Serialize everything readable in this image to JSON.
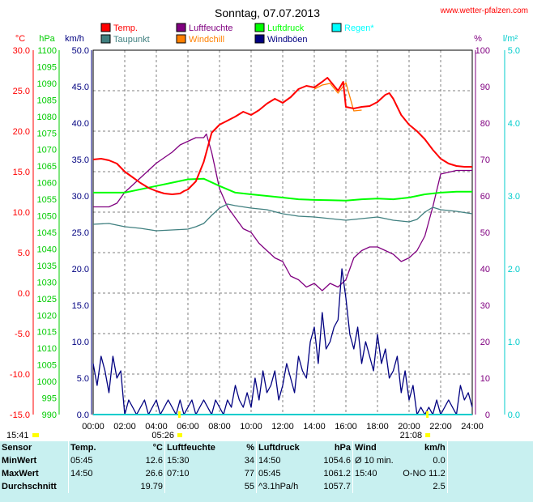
{
  "site": "www.wetter-pfalzen.com",
  "chart_data": {
    "type": "line",
    "title": "Sonntag, 07.07.2013",
    "x_ticks": [
      "00:00",
      "02:00",
      "04:00",
      "06:00",
      "08:00",
      "10:00",
      "12:00",
      "14:00",
      "16:00",
      "18:00",
      "20:00",
      "22:00",
      "24:00"
    ],
    "sunrise": "05:26",
    "sunset": "21:08",
    "daylight_start": "15:41",
    "grid": true,
    "axes": {
      "temp": {
        "unit": "°C",
        "range": [
          -15,
          30
        ],
        "ticks": [
          "30.0",
          "25.0",
          "20.0",
          "15.0",
          "10.0",
          "5.0",
          "0.0",
          "-5.0",
          "-10.0",
          "-15.0"
        ],
        "color": "#ff0000"
      },
      "pressure": {
        "unit": "hPa",
        "range": [
          990,
          1100
        ],
        "ticks": [
          "1100",
          "1095",
          "1090",
          "1085",
          "1080",
          "1075",
          "1070",
          "1065",
          "1060",
          "1055",
          "1050",
          "1045",
          "1040",
          "1035",
          "1030",
          "1025",
          "1020",
          "1015",
          "1010",
          "1005",
          "1000",
          "995",
          "990"
        ],
        "color": "#00cc00"
      },
      "wind": {
        "unit": "km/h",
        "range": [
          0,
          50
        ],
        "ticks": [
          "50.0",
          "45.0",
          "40.0",
          "35.0",
          "30.0",
          "25.0",
          "20.0",
          "15.0",
          "10.0",
          "5.0",
          "0.0"
        ],
        "color": "#000080"
      },
      "humidity": {
        "unit": "%",
        "range": [
          0,
          100
        ],
        "ticks": [
          "100",
          "90",
          "80",
          "70",
          "60",
          "50",
          "40",
          "30",
          "20",
          "10",
          "0"
        ],
        "color": "#800080"
      },
      "rain": {
        "unit": "l/m²",
        "range": [
          0,
          5
        ],
        "ticks": [
          "5.0",
          "4.0",
          "3.0",
          "2.0",
          "1.0",
          "0.0"
        ],
        "color": "#00cccc"
      }
    },
    "legend": [
      {
        "label": "Temp.",
        "color": "#ff0000"
      },
      {
        "label": "Luftfeuchte",
        "color": "#800080"
      },
      {
        "label": "Luftdruck",
        "color": "#00ff00"
      },
      {
        "label": "Regen*",
        "color": "#00ffff"
      },
      {
        "label": "Taupunkt",
        "color": "#408080"
      },
      {
        "label": "Windchill",
        "color": "#ff8000"
      },
      {
        "label": "Windböen",
        "color": "#000080"
      }
    ],
    "series": [
      {
        "name": "Temp.",
        "axis": "temp",
        "color": "#ff0000",
        "x": [
          0,
          0.5,
          1,
          1.5,
          2,
          2.5,
          3,
          3.5,
          4,
          4.5,
          5,
          5.5,
          5.75,
          6,
          6.5,
          7,
          7.5,
          8,
          8.5,
          9,
          9.5,
          10,
          10.5,
          11,
          11.5,
          12,
          12.5,
          13,
          13.5,
          14,
          14.5,
          14.83,
          15,
          15.5,
          15.83,
          16,
          16.5,
          17,
          17.5,
          18,
          18.5,
          18.75,
          19,
          19.5,
          20,
          20.5,
          21,
          21.5,
          22,
          22.5,
          23,
          23.5,
          24
        ],
        "y": [
          16.5,
          16.6,
          16.4,
          16.0,
          15.0,
          14.3,
          13.6,
          13.0,
          12.6,
          12.3,
          12.2,
          12.3,
          12.6,
          12.8,
          13.8,
          16.2,
          19.8,
          20.8,
          21.3,
          21.8,
          22.4,
          22.0,
          22.6,
          23.4,
          24.0,
          23.5,
          24.2,
          25.2,
          25.6,
          25.4,
          26.1,
          26.6,
          26.2,
          25.0,
          26.1,
          23.0,
          22.8,
          23.0,
          23.1,
          23.6,
          24.5,
          24.7,
          24.0,
          22.0,
          20.8,
          20.0,
          19.0,
          17.7,
          16.6,
          16.0,
          15.7,
          15.6,
          15.6
        ]
      },
      {
        "name": "Windchill",
        "axis": "temp",
        "color": "#ff8000",
        "x": [
          14,
          14.5,
          15,
          15.5,
          16,
          16.5,
          17
        ],
        "y": [
          25.2,
          25.7,
          25.9,
          24.7,
          26.0,
          22.5,
          22.6
        ]
      },
      {
        "name": "Taupunkt",
        "axis": "temp",
        "color": "#408080",
        "x": [
          0,
          1,
          2,
          3,
          4,
          5,
          6,
          6.5,
          7,
          7.5,
          8,
          8.5,
          9,
          10,
          11,
          12,
          13,
          14,
          15,
          16,
          17,
          18,
          19,
          20,
          20.5,
          21,
          21.5,
          22,
          23,
          24
        ],
        "y": [
          8.5,
          8.6,
          8.2,
          8.0,
          7.7,
          7.8,
          7.9,
          8.2,
          8.6,
          9.6,
          10.5,
          11.0,
          10.8,
          10.5,
          10.3,
          9.8,
          9.5,
          9.4,
          9.2,
          9.0,
          9.2,
          9.4,
          9.0,
          8.8,
          9.1,
          10.0,
          10.6,
          10.3,
          10.1,
          9.8
        ]
      },
      {
        "name": "Luftdruck",
        "axis": "pressure",
        "color": "#00ff00",
        "x": [
          0,
          1,
          2,
          3,
          4,
          5,
          6,
          7,
          8,
          9,
          10,
          11,
          12,
          13,
          14,
          15,
          16,
          17,
          18,
          19,
          20,
          21,
          22,
          23,
          24
        ],
        "y": [
          1057.0,
          1057.0,
          1057.0,
          1058.0,
          1059.0,
          1060.0,
          1061.0,
          1061.2,
          1059.0,
          1057.0,
          1056.5,
          1056.0,
          1055.5,
          1055.0,
          1054.8,
          1054.7,
          1054.6,
          1055.0,
          1055.2,
          1055.0,
          1055.5,
          1056.5,
          1057.0,
          1057.3,
          1057.3
        ]
      },
      {
        "name": "Luftfeuchte",
        "axis": "humidity",
        "color": "#800080",
        "x": [
          0,
          1,
          1.5,
          2,
          2.5,
          3,
          3.5,
          4,
          5,
          5.5,
          6,
          6.5,
          7,
          7.17,
          7.5,
          8,
          8.5,
          9,
          9.5,
          10,
          10.5,
          11,
          11.5,
          12,
          12.5,
          13,
          13.5,
          14,
          14.5,
          15,
          15.5,
          16,
          16.5,
          17,
          17.5,
          18,
          18.5,
          19,
          19.5,
          20,
          20.5,
          21,
          21.5,
          22,
          23,
          24
        ],
        "y": [
          57,
          57,
          58,
          61,
          63,
          65,
          67,
          69,
          72,
          74,
          75,
          76,
          76,
          77,
          72,
          62,
          57,
          54,
          51,
          50,
          47,
          45,
          43,
          42,
          38,
          37,
          35,
          36,
          34,
          36,
          35,
          37,
          43,
          45,
          46,
          46,
          45,
          44,
          42,
          43,
          45,
          49,
          57,
          66,
          67,
          67
        ]
      },
      {
        "name": "Windböen",
        "axis": "wind",
        "color": "#000080",
        "x": [
          0,
          0.25,
          0.5,
          0.75,
          1,
          1.25,
          1.5,
          1.75,
          2,
          2.25,
          2.5,
          2.75,
          3,
          3.25,
          3.5,
          3.75,
          4,
          4.25,
          4.5,
          4.75,
          5,
          5.25,
          5.5,
          5.75,
          6,
          6.25,
          6.5,
          6.75,
          7,
          7.25,
          7.5,
          7.75,
          8,
          8.25,
          8.5,
          8.75,
          9,
          9.25,
          9.5,
          9.75,
          10,
          10.25,
          10.5,
          10.75,
          11,
          11.25,
          11.5,
          11.75,
          12,
          12.25,
          12.5,
          12.75,
          13,
          13.25,
          13.5,
          13.75,
          14,
          14.25,
          14.5,
          14.75,
          15,
          15.25,
          15.5,
          15.75,
          16,
          16.25,
          16.5,
          16.75,
          17,
          17.25,
          17.5,
          17.75,
          18,
          18.25,
          18.5,
          18.75,
          19,
          19.25,
          19.5,
          19.75,
          20,
          20.25,
          20.5,
          20.75,
          21,
          21.25,
          21.5,
          21.75,
          22,
          22.25,
          22.5,
          22.75,
          23,
          23.25,
          23.5,
          23.75,
          24
        ],
        "y": [
          7,
          4,
          8,
          6,
          3,
          8,
          5,
          6,
          0,
          2,
          1,
          0,
          1,
          2,
          0,
          1,
          2,
          0,
          1,
          2,
          1,
          0,
          2,
          0,
          1,
          2,
          0,
          1,
          2,
          1,
          0,
          2,
          1,
          0,
          2,
          1,
          4,
          2,
          1,
          3,
          1,
          5,
          2,
          6,
          3,
          4,
          6,
          2,
          4,
          7,
          5,
          3,
          8,
          6,
          5,
          10,
          12,
          7,
          14,
          9,
          10,
          12,
          13,
          20,
          16,
          11,
          9,
          12,
          7,
          10,
          8,
          6,
          11,
          7,
          9,
          5,
          6,
          8,
          3,
          6,
          2,
          4,
          0,
          1,
          0,
          1,
          0,
          2,
          0,
          1,
          2,
          1,
          0,
          4,
          2,
          3,
          1
        ]
      }
    ]
  },
  "stats": {
    "headers": [
      "Sensor",
      "Temp.",
      "°C",
      "Luftfeuchte",
      "%",
      "Luftdruck",
      "hPa",
      "Wind",
      "km/h"
    ],
    "rows": [
      {
        "label": "MinWert",
        "temp_time": "05:45",
        "temp_val": "12.6",
        "hum_time": "15:30",
        "hum_val": "34",
        "pres_time": "14:50",
        "pres_val": "1054.6",
        "wind_label": "Ø 10 min.",
        "wind_val": "0.0"
      },
      {
        "label": "MaxWert",
        "temp_time": "14:50",
        "temp_val": "26.6",
        "hum_time": "07:10",
        "hum_val": "77",
        "pres_time": "05:45",
        "pres_val": "1061.2",
        "wind_label": "15:40",
        "wind_dir": "O-NO",
        "wind_val": "11.2"
      },
      {
        "label": "Durchschnitt",
        "temp_time": "",
        "temp_val": "19.79",
        "hum_time": "",
        "hum_val": "55",
        "pres_time": "^3.1hPa/h",
        "pres_val": "1057.7",
        "wind_label": "",
        "wind_val": "2.5"
      }
    ]
  }
}
